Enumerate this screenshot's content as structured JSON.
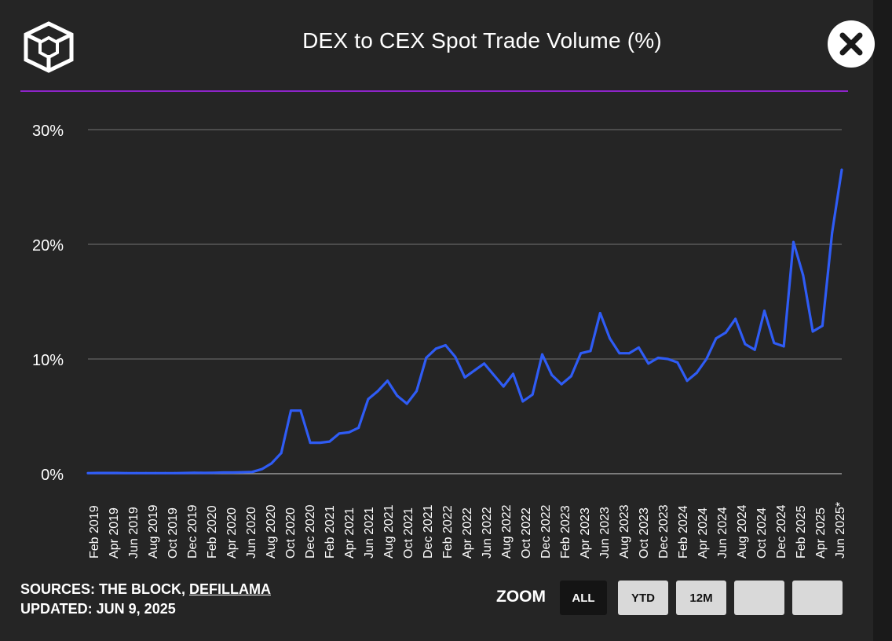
{
  "header": {
    "title": "DEX to CEX Spot Trade Volume (%)",
    "accent_color": "#8e24c9"
  },
  "footer": {
    "sources_prefix": "SOURCES: THE BLOCK, ",
    "sources_link": "DEFILLAMA",
    "updated": "UPDATED: JUN 9, 2025"
  },
  "zoom": {
    "label": "ZOOM",
    "buttons": [
      {
        "label": "ALL",
        "active": true
      },
      {
        "label": "YTD",
        "active": false
      },
      {
        "label": "12M",
        "active": false
      },
      {
        "label": "",
        "active": false
      },
      {
        "label": "",
        "active": false
      }
    ]
  },
  "icons": {
    "logo": "the-block-cube-logo",
    "close": "close-icon"
  },
  "chart_data": {
    "type": "line",
    "title": "DEX to CEX Spot Trade Volume (%)",
    "xlabel": "",
    "ylabel": "",
    "ylim": [
      0,
      30
    ],
    "yticks": [
      0,
      10,
      20,
      30
    ],
    "ytick_labels": [
      "0%",
      "10%",
      "20%",
      "30%"
    ],
    "grid": true,
    "line_color": "#2f5cf5",
    "x_tick_labels": [
      "Feb 2019",
      "Apr 2019",
      "Jun 2019",
      "Aug 2019",
      "Oct 2019",
      "Dec 2019",
      "Feb 2020",
      "Apr 2020",
      "Jun 2020",
      "Aug 2020",
      "Oct 2020",
      "Dec 2020",
      "Feb 2021",
      "Apr 2021",
      "Jun 2021",
      "Aug 2021",
      "Oct 2021",
      "Dec 2021",
      "Feb 2022",
      "Apr 2022",
      "Jun 2022",
      "Aug 2022",
      "Oct 2022",
      "Dec 2022",
      "Feb 2023",
      "Apr 2023",
      "Jun 2023",
      "Aug 2023",
      "Oct 2023",
      "Dec 2023",
      "Feb 2024",
      "Apr 2024",
      "Jun 2024",
      "Aug 2024",
      "Oct 2024",
      "Dec 2024",
      "Feb 2025",
      "Apr 2025",
      "Jun 2025*"
    ],
    "series": [
      {
        "values": [
          0.05,
          0.06,
          0.06,
          0.06,
          0.05,
          0.05,
          0.05,
          0.05,
          0.05,
          0.05,
          0.06,
          0.08,
          0.07,
          0.08,
          0.1,
          0.1,
          0.12,
          0.15,
          0.4,
          0.9,
          1.8,
          5.5,
          5.5,
          2.7,
          2.7,
          2.8,
          3.5,
          3.6,
          4.0,
          6.5,
          7.2,
          8.1,
          6.8,
          6.1,
          7.2,
          10.1,
          10.9,
          11.2,
          10.2,
          8.4,
          9.0,
          9.6,
          8.6,
          7.6,
          8.7,
          6.3,
          6.9,
          10.4,
          8.6,
          7.8,
          8.5,
          10.5,
          10.7,
          14.0,
          11.8,
          10.5,
          10.5,
          11.0,
          9.6,
          10.1,
          10.0,
          9.7,
          8.1,
          8.8,
          10.0,
          11.8,
          12.3,
          13.5,
          11.3,
          10.8,
          14.2,
          11.4,
          11.1,
          20.2,
          17.3,
          12.4,
          12.9,
          21.0,
          26.5
        ]
      }
    ]
  }
}
